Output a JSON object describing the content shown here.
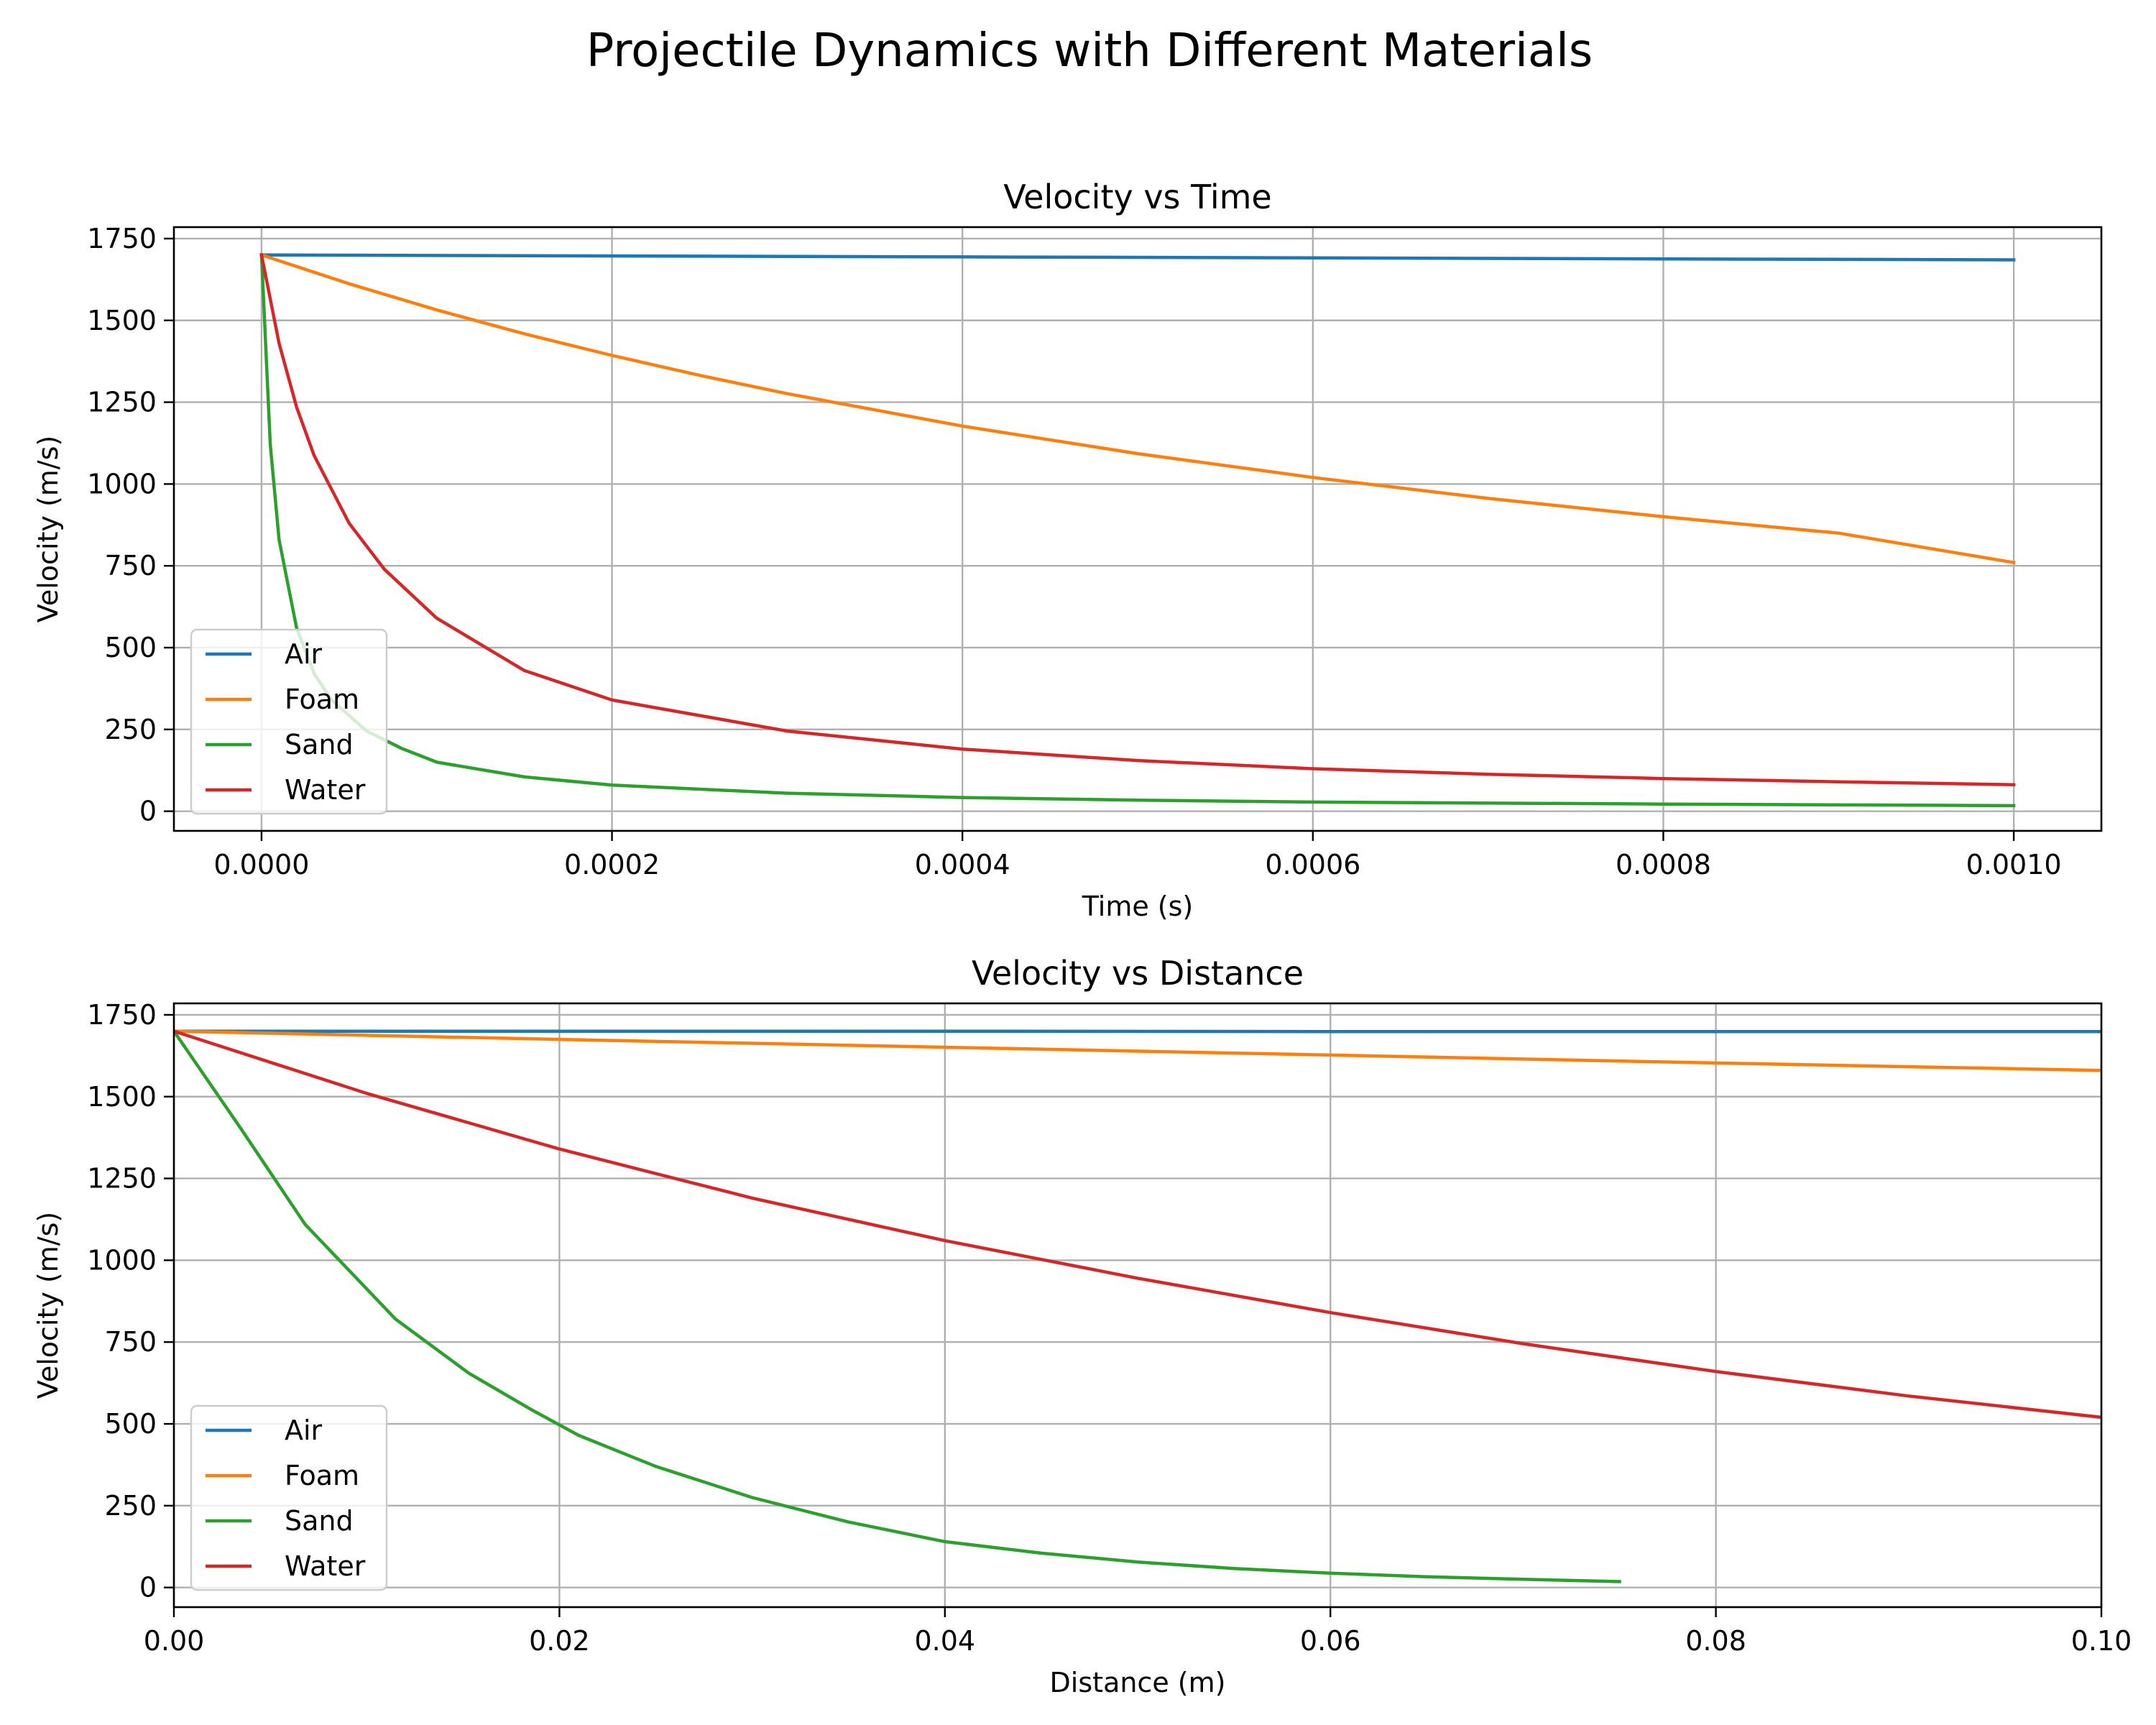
{
  "figure": {
    "title": "Projectile Dynamics with Different Materials"
  },
  "chart_data": [
    {
      "type": "line",
      "title": "Velocity vs Time",
      "xlabel": "Time (s)",
      "ylabel": "Velocity (m/s)",
      "xlim": [
        -5e-05,
        0.00105
      ],
      "ylim": [
        -60,
        1785
      ],
      "xticks": [
        0,
        0.0002,
        0.0004,
        0.0006,
        0.0008,
        0.001
      ],
      "xtick_labels": [
        "0.0000",
        "0.0002",
        "0.0004",
        "0.0006",
        "0.0008",
        "0.0010"
      ],
      "yticks": [
        0,
        250,
        500,
        750,
        1000,
        1250,
        1500,
        1750
      ],
      "ytick_labels": [
        "0",
        "250",
        "500",
        "750",
        "1000",
        "1250",
        "1500",
        "1750"
      ],
      "grid": true,
      "legend": "lower-left",
      "series": [
        {
          "name": "Air",
          "color": "#1f77b4",
          "x": [
            0,
            0.0002,
            0.0004,
            0.0006,
            0.0008,
            0.001
          ],
          "y": [
            1700,
            1697,
            1694,
            1691,
            1688,
            1685
          ]
        },
        {
          "name": "Foam",
          "color": "#ff7f0e",
          "x": [
            0,
            5e-05,
            0.0001,
            0.00015,
            0.0002,
            0.00025,
            0.0003,
            0.0004,
            0.0005,
            0.0006,
            0.0007,
            0.0008,
            0.0009,
            0.001
          ],
          "y": [
            1700,
            1612,
            1532,
            1459,
            1393,
            1332,
            1276,
            1177,
            1093,
            1020,
            956,
            900,
            850,
            760
          ]
        },
        {
          "name": "Sand",
          "color": "#2ca02c",
          "x": [
            0,
            5e-06,
            1e-05,
            2e-05,
            3e-05,
            4e-05,
            6e-05,
            8e-05,
            0.0001,
            0.00015,
            0.0002,
            0.0003,
            0.0004,
            0.0005,
            0.0006,
            0.0008,
            0.001
          ],
          "y": [
            1700,
            1120,
            830,
            560,
            420,
            340,
            245,
            192,
            150,
            105,
            80,
            55,
            42,
            34,
            28,
            22,
            17
          ]
        },
        {
          "name": "Water",
          "color": "#d62728",
          "x": [
            0,
            1e-05,
            2e-05,
            3e-05,
            5e-05,
            7e-05,
            0.0001,
            0.00015,
            0.0002,
            0.0003,
            0.0004,
            0.0005,
            0.0006,
            0.0007,
            0.0008,
            0.0009,
            0.001
          ],
          "y": [
            1700,
            1430,
            1235,
            1087,
            880,
            740,
            590,
            430,
            340,
            245,
            190,
            155,
            130,
            113,
            100,
            90,
            81
          ]
        }
      ]
    },
    {
      "type": "line",
      "title": "Velocity vs Distance",
      "xlabel": "Distance (m)",
      "ylabel": "Velocity (m/s)",
      "xlim": [
        0,
        0.1
      ],
      "ylim": [
        -60,
        1785
      ],
      "xticks": [
        0,
        0.02,
        0.04,
        0.06,
        0.08,
        0.1
      ],
      "xtick_labels": [
        "0.00",
        "0.02",
        "0.04",
        "0.06",
        "0.08",
        "0.10"
      ],
      "yticks": [
        0,
        250,
        500,
        750,
        1000,
        1250,
        1500,
        1750
      ],
      "ytick_labels": [
        "0",
        "250",
        "500",
        "750",
        "1000",
        "1250",
        "1500",
        "1750"
      ],
      "grid": true,
      "legend": "lower-left",
      "series": [
        {
          "name": "Air",
          "color": "#1f77b4",
          "x": [
            0,
            0.02,
            0.04,
            0.06,
            0.08,
            0.1
          ],
          "y": [
            1700,
            1700,
            1700,
            1699,
            1699,
            1699
          ]
        },
        {
          "name": "Foam",
          "color": "#ff7f0e",
          "x": [
            0,
            0.02,
            0.04,
            0.06,
            0.08,
            0.1
          ],
          "y": [
            1700,
            1675,
            1651,
            1627,
            1603,
            1580
          ]
        },
        {
          "name": "Sand",
          "color": "#2ca02c",
          "x": [
            0,
            0.0035,
            0.0068,
            0.0115,
            0.0153,
            0.0185,
            0.021,
            0.025,
            0.03,
            0.035,
            0.04,
            0.045,
            0.05,
            0.055,
            0.06,
            0.065,
            0.07,
            0.075
          ],
          "y": [
            1700,
            1400,
            1110,
            820,
            655,
            545,
            465,
            370,
            275,
            200,
            140,
            105,
            78,
            58,
            44,
            33,
            25,
            18
          ]
        },
        {
          "name": "Water",
          "color": "#d62728",
          "x": [
            0,
            0.01,
            0.02,
            0.03,
            0.04,
            0.05,
            0.06,
            0.07,
            0.08,
            0.09,
            0.1
          ],
          "y": [
            1700,
            1510,
            1340,
            1190,
            1060,
            945,
            840,
            745,
            660,
            585,
            520
          ]
        }
      ]
    }
  ]
}
